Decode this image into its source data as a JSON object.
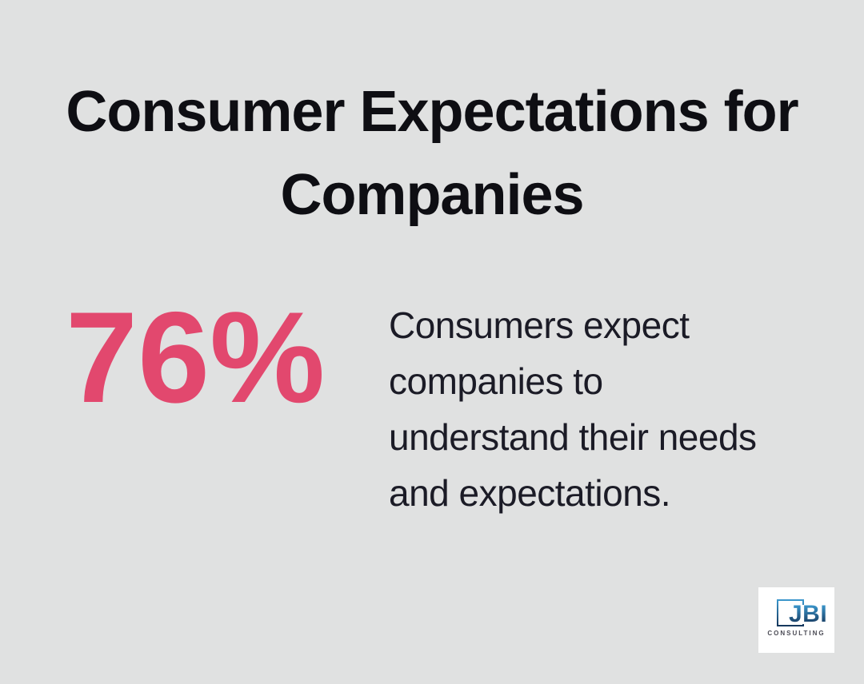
{
  "colors": {
    "canvas_bg": "#e0e1e1",
    "title_text": "#0e0e13",
    "stat_accent": "#e2486e",
    "body_text": "#1b1b26",
    "logo_bg": "#ffffff",
    "logo_blue_top": "#3b97cd",
    "logo_blue_bottom": "#16375c",
    "logo_subtext": "#4b4b55"
  },
  "title": {
    "text": "Consumer Expectations for\nCompanies"
  },
  "stat": {
    "value": "76%"
  },
  "description": {
    "text": "Consumers expect\ncompanies to\nunderstand their needs\nand expectations."
  },
  "logo": {
    "text": "JBI",
    "subtext": "CONSULTING"
  }
}
